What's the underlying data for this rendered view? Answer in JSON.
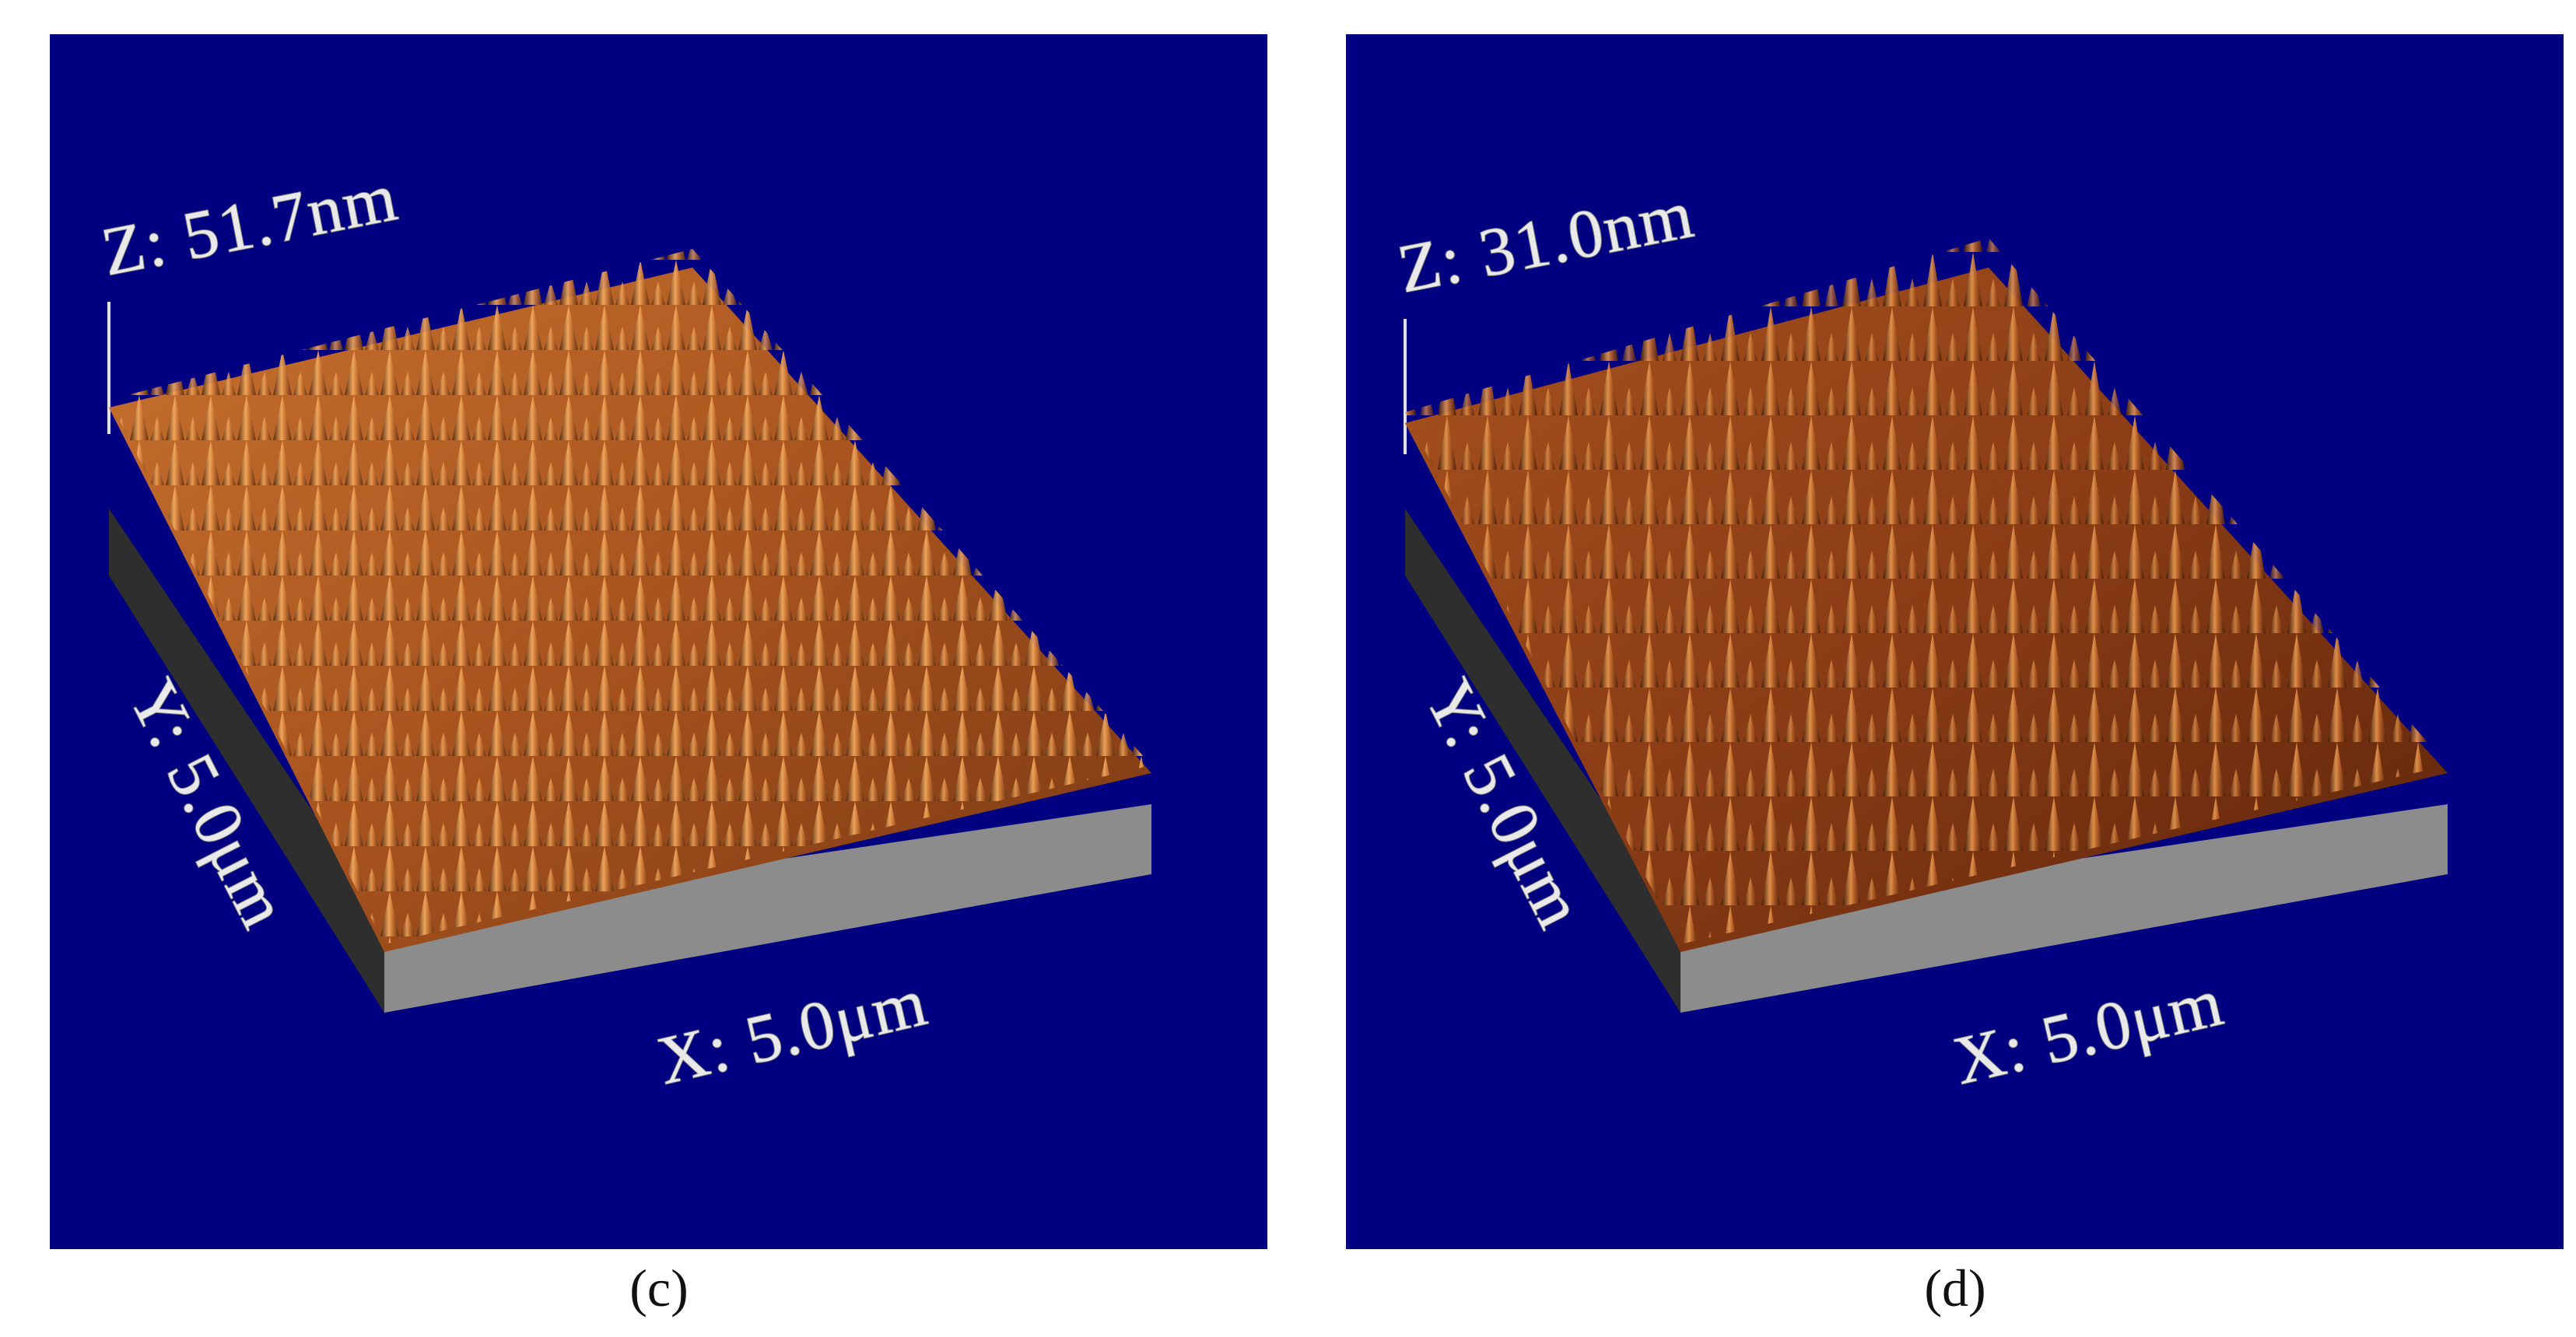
{
  "colors": {
    "background": "#ffffff",
    "plot_background": "#000080",
    "base_gray": "#8c8c8c",
    "base_dark": "#2e2e2e",
    "surface_light": "#f0a35a",
    "surface_mid": "#c0622a",
    "surface_dark": "#3a1a08"
  },
  "panels": [
    {
      "id": "c",
      "caption": "(c)",
      "z_label": "Z: 51.7nm",
      "x_label": "X: 5.0μm",
      "y_label": "Y: 5.0μm"
    },
    {
      "id": "d",
      "caption": "(d)",
      "z_label": "Z: 31.0nm",
      "x_label": "X: 5.0μm",
      "y_label": "Y: 5.0μm"
    }
  ]
}
